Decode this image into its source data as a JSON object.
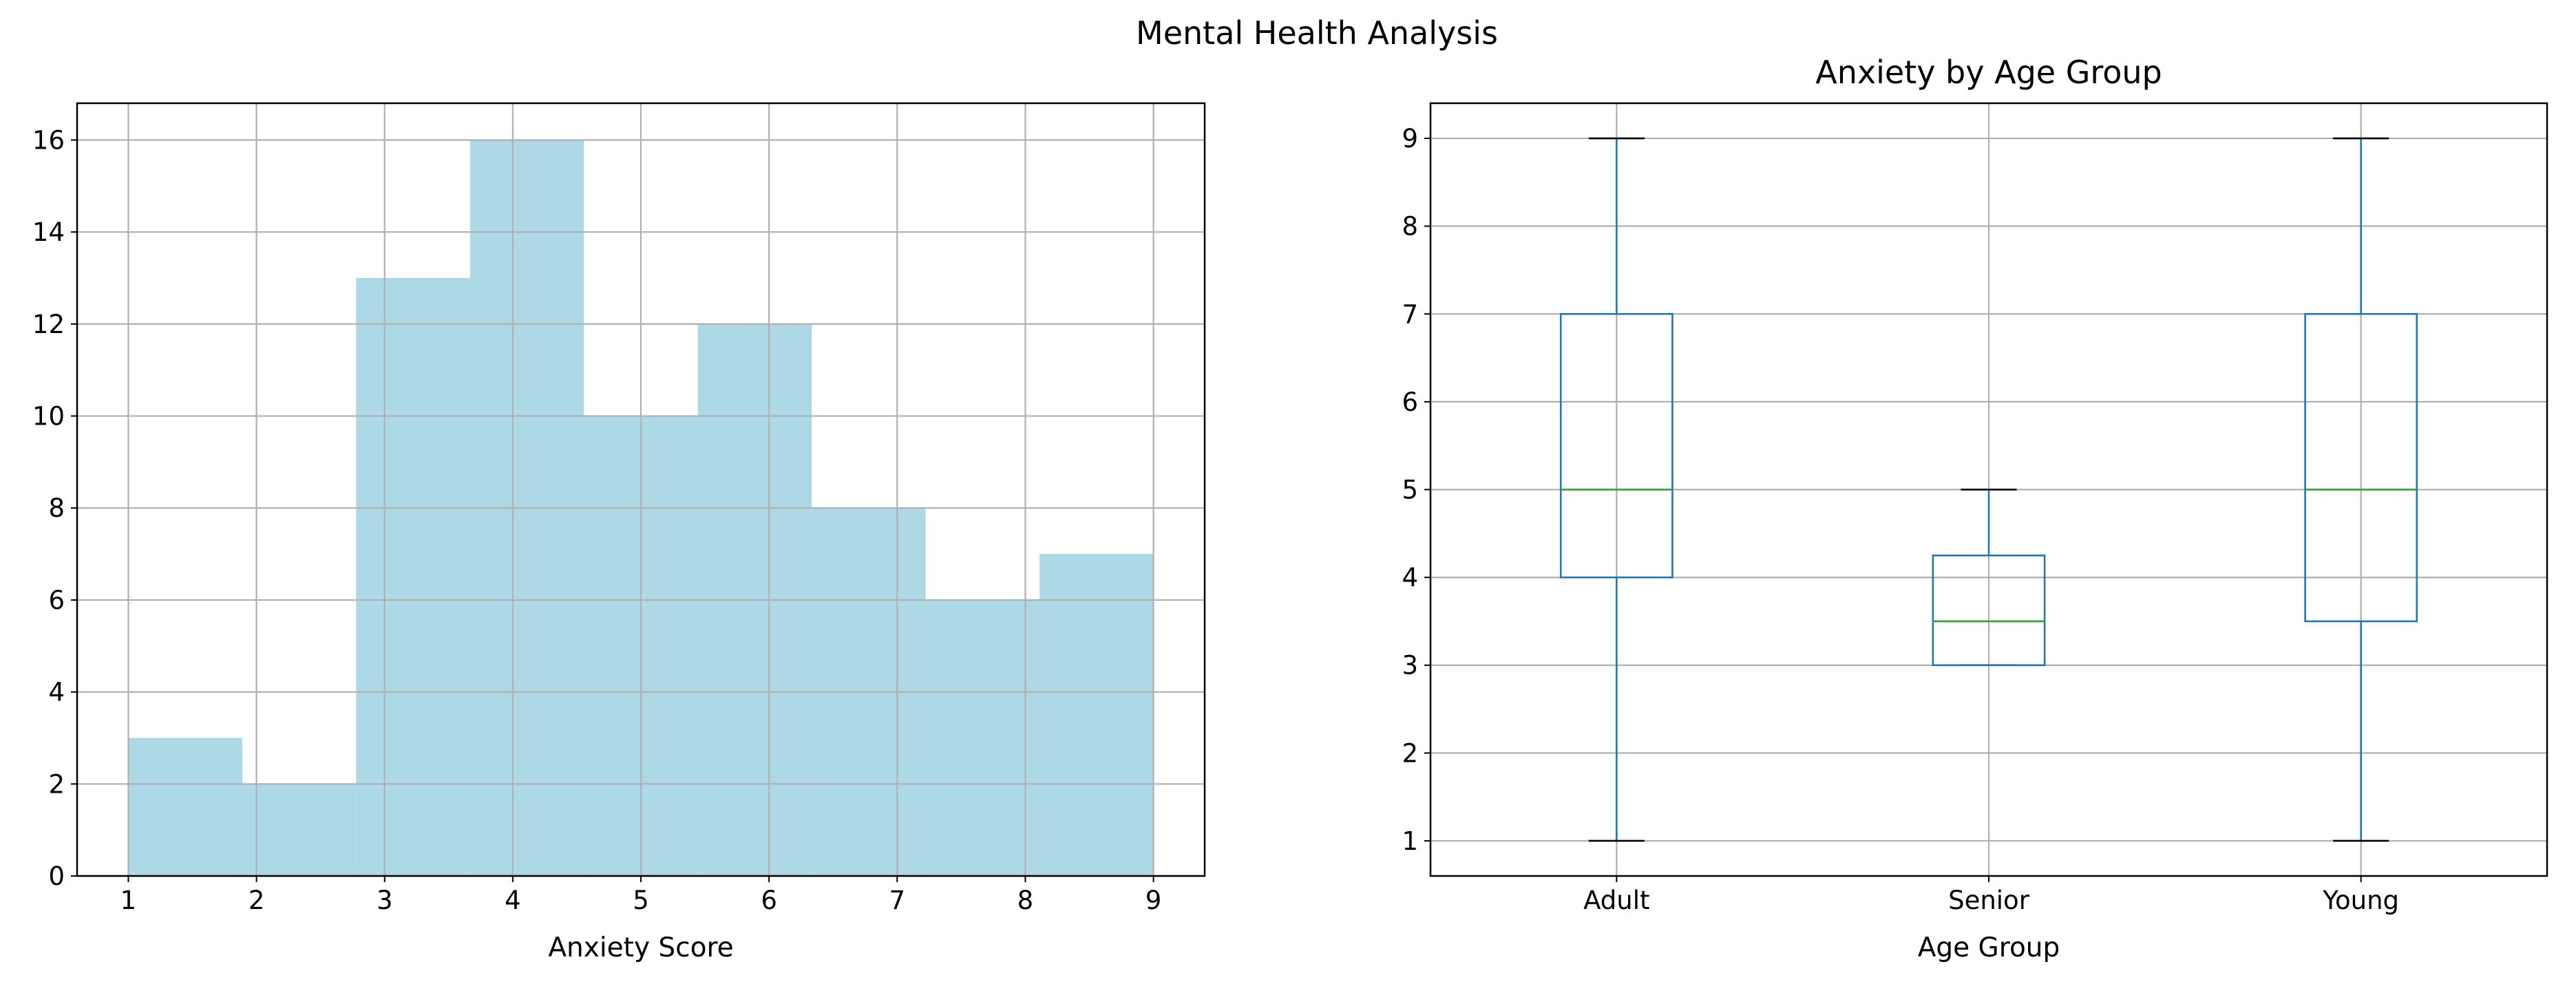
{
  "figure": {
    "suptitle": "Mental Health Analysis"
  },
  "chart_data": [
    {
      "type": "bar",
      "subtype": "histogram",
      "title": "",
      "xlabel": "Anxiety Score",
      "ylabel": "",
      "bins": [
        {
          "x0": 1.0,
          "x1": 1.8889,
          "count": 3
        },
        {
          "x0": 1.8889,
          "x1": 2.7778,
          "count": 2
        },
        {
          "x0": 2.7778,
          "x1": 3.6667,
          "count": 13
        },
        {
          "x0": 3.6667,
          "x1": 4.5556,
          "count": 16
        },
        {
          "x0": 4.5556,
          "x1": 5.4444,
          "count": 10
        },
        {
          "x0": 5.4444,
          "x1": 6.3333,
          "count": 12
        },
        {
          "x0": 6.3333,
          "x1": 7.2222,
          "count": 8
        },
        {
          "x0": 7.2222,
          "x1": 8.1111,
          "count": 6
        },
        {
          "x0": 8.1111,
          "x1": 9.0,
          "count": 7
        }
      ],
      "xticks": [
        1,
        2,
        3,
        4,
        5,
        6,
        7,
        8,
        9
      ],
      "yticks": [
        0,
        2,
        4,
        6,
        8,
        10,
        12,
        14,
        16
      ],
      "xlim": [
        0.6,
        9.4
      ],
      "ylim": [
        0,
        16.8
      ],
      "grid": true,
      "bar_color": "#add8e6"
    },
    {
      "type": "box",
      "title": "Anxiety by Age Group",
      "xlabel": "Age Group",
      "ylabel": "",
      "categories": [
        "Adult",
        "Senior",
        "Young"
      ],
      "boxes": [
        {
          "category": "Adult",
          "whisker_low": 1,
          "q1": 4,
          "median": 5,
          "q3": 7,
          "whisker_high": 9
        },
        {
          "category": "Senior",
          "whisker_low": 3,
          "q1": 3,
          "median": 3.5,
          "q3": 4.25,
          "whisker_high": 5
        },
        {
          "category": "Young",
          "whisker_low": 1,
          "q1": 3.5,
          "median": 5,
          "q3": 7,
          "whisker_high": 9
        }
      ],
      "yticks": [
        1,
        2,
        3,
        4,
        5,
        6,
        7,
        8,
        9
      ],
      "ylim": [
        0.6,
        9.4
      ],
      "grid": true,
      "box_color": "#1f77b4",
      "median_color": "#2ca02c"
    }
  ]
}
